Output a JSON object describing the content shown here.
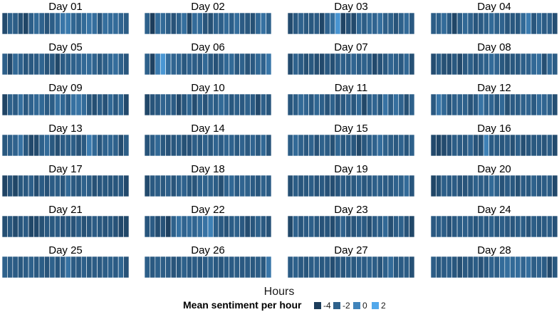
{
  "chart_data": {
    "type": "heatmap",
    "xlabel": "Hours",
    "legend": {
      "title": "Mean sentiment per hour",
      "placement": "bottom",
      "breaks": [
        -4,
        -2,
        0,
        2
      ],
      "labels": [
        "-4",
        "-2",
        "0",
        "2"
      ]
    },
    "color_scale": {
      "low": "#132B43",
      "high": "#56B1F7",
      "limits": [
        -5,
        2.5
      ]
    },
    "panels": [
      {
        "title": "Day 01",
        "values": [
          -3.2,
          -2.0,
          -2.2,
          -2.9,
          -3.5,
          -2.1,
          -1.5,
          -1.9,
          -2.7,
          -2.2,
          -1.6,
          -0.8,
          -0.6,
          -1.7,
          -2.0,
          -1.5,
          -0.9,
          -1.3,
          -2.6,
          -1.2,
          -1.4,
          -1.4,
          -1.8,
          -2.2
        ]
      },
      {
        "title": "Day 02",
        "values": [
          -2.0,
          -4.0,
          -1.5,
          -1.5,
          -2.2,
          -2.8,
          -2.0,
          -1.2,
          -3.5,
          -1.4,
          -1.5,
          -2.7,
          -2.9,
          -1.9,
          -2.1,
          -1.4,
          -2.1,
          -1.3,
          -2.3,
          -2.5,
          -2.9,
          -1.6,
          -1.1,
          -2.0
        ]
      },
      {
        "title": "Day 03",
        "values": [
          -3.2,
          -2.4,
          -1.9,
          -2.4,
          -2.5,
          -2.3,
          -3.5,
          -1.8,
          -1.2,
          0.9,
          -3.6,
          -2.8,
          -3.3,
          -1.6,
          -2.2,
          -1.5,
          -1.8,
          -1.2,
          -2.1,
          -2.0,
          -2.7,
          -2.0,
          -1.4,
          -2.4
        ]
      },
      {
        "title": "Day 04",
        "values": [
          -2.2,
          -2.0,
          -1.4,
          -2.3,
          -3.5,
          -2.2,
          -1.6,
          -1.9,
          -2.6,
          -2.3,
          -2.0,
          -1.5,
          -2.0,
          -1.9,
          -2.6,
          -2.5,
          -2.5,
          -1.5,
          -0.5,
          -2.6,
          -1.6,
          -2.3,
          -2.1,
          -3.0
        ]
      },
      {
        "title": "Day 05",
        "values": [
          -2.1,
          -3.3,
          -1.6,
          -1.9,
          -2.6,
          -2.4,
          -2.3,
          -1.8,
          -2.7,
          -2.4,
          -3.4,
          -2.3,
          -2.1,
          -2.0,
          -1.8,
          -1.6,
          -1.4,
          -1.9,
          -2.5,
          -2.1,
          -1.6,
          -1.3,
          -2.0,
          -2.6
        ]
      },
      {
        "title": "Day 06",
        "values": [
          -2.0,
          -3.7,
          -0.5,
          1.0,
          -1.3,
          -1.8,
          -1.8,
          -2.5,
          -1.9,
          -2.2,
          -2.4,
          -1.6,
          -2.4,
          -2.8,
          -2.2,
          -1.6,
          -1.5,
          -2.4,
          -2.0,
          -2.7,
          -2.4,
          -1.6,
          -1.9,
          -0.8
        ]
      },
      {
        "title": "Day 07",
        "values": [
          -3.2,
          -1.9,
          -2.3,
          -2.9,
          -2.5,
          -3.0,
          -3.3,
          -2.4,
          -3.0,
          -2.2,
          -2.1,
          -2.2,
          -1.8,
          -2.2,
          -2.0,
          -2.2,
          -3.3,
          -2.8,
          -2.4,
          -1.8,
          -2.1,
          -2.4,
          -1.6,
          -2.9
        ]
      },
      {
        "title": "Day 08",
        "values": [
          -3.1,
          -2.2,
          -2.9,
          -3.0,
          -2.5,
          -3.3,
          -2.4,
          -2.1,
          -2.7,
          -2.1,
          -2.0,
          -1.4,
          -1.8,
          -2.5,
          -2.9,
          -2.5,
          -2.4,
          -2.1,
          -1.9,
          -1.6,
          -1.2,
          -3.0,
          -1.6,
          -2.2
        ]
      },
      {
        "title": "Day 09",
        "values": [
          -3.6,
          -2.0,
          -2.3,
          -1.2,
          -2.4,
          -1.9,
          -1.6,
          -1.6,
          -2.3,
          -2.2,
          -1.2,
          -1.7,
          -2.3,
          -1.1,
          -0.9,
          -1.4,
          -2.5,
          -3.0,
          -2.2,
          -2.8,
          -1.6,
          -2.4,
          -1.7,
          -3.3
        ]
      },
      {
        "title": "Day 10",
        "values": [
          -3.4,
          -2.7,
          -2.4,
          -1.8,
          -2.1,
          -2.3,
          -3.3,
          -2.6,
          -1.7,
          -3.1,
          -2.0,
          -2.8,
          -1.9,
          -2.2,
          -1.5,
          -1.8,
          -2.5,
          -2.1,
          -2.4,
          -2.0,
          -2.3,
          -3.3,
          -2.1,
          -2.6
        ]
      },
      {
        "title": "Day 11",
        "values": [
          -2.6,
          -2.2,
          -1.5,
          -1.8,
          -2.4,
          -1.7,
          -2.1,
          -2.7,
          -2.0,
          -2.8,
          -2.4,
          -1.9,
          -2.6,
          -1.6,
          -3.4,
          -2.0,
          -1.8,
          -2.5,
          -1.0,
          -2.2,
          -1.2,
          -1.9,
          -2.9,
          -2.0
        ]
      },
      {
        "title": "Day 12",
        "values": [
          -2.4,
          -0.8,
          -1.6,
          -2.6,
          -2.1,
          -2.0,
          -2.0,
          -2.7,
          -2.3,
          -0.9,
          -1.9,
          -1.8,
          -2.5,
          -1.6,
          -2.9,
          -2.3,
          -2.2,
          -2.0,
          -1.8,
          -2.4,
          -1.4,
          -1.8,
          -2.0,
          -3.0
        ]
      },
      {
        "title": "Day 13",
        "values": [
          -2.5,
          -2.1,
          -1.9,
          -1.0,
          -2.5,
          -3.3,
          -3.2,
          -2.0,
          -1.4,
          -2.5,
          -3.0,
          -2.3,
          -2.2,
          -2.2,
          -2.8,
          -2.4,
          -0.5,
          -1.6,
          -2.6,
          -1.9,
          -1.7,
          -2.0,
          -3.1,
          -2.2
        ]
      },
      {
        "title": "Day 14",
        "values": [
          -2.7,
          -2.2,
          -1.6,
          -2.5,
          -2.8,
          -2.6,
          -2.2,
          -2.9,
          -2.8,
          -2.2,
          -2.5,
          -2.1,
          -2.5,
          -1.8,
          -2.3,
          -1.8,
          -1.9,
          -2.4,
          -1.9,
          -2.4,
          -1.8,
          -2.5,
          -1.6,
          -2.7
        ]
      },
      {
        "title": "Day 15",
        "values": [
          -2.2,
          -1.5,
          -2.0,
          -2.4,
          -1.9,
          -2.8,
          -2.0,
          -2.2,
          -2.9,
          -1.7,
          -2.5,
          -2.2,
          -2.6,
          -3.4,
          -2.6,
          -2.1,
          -1.9,
          -1.3,
          -2.0,
          -2.2,
          -2.4,
          -1.9,
          -2.6,
          -2.0
        ]
      },
      {
        "title": "Day 16",
        "values": [
          -3.3,
          -3.5,
          -3.2,
          -2.8,
          -2.2,
          -2.3,
          -2.5,
          -1.8,
          -2.7,
          -2.9,
          -0.2,
          -2.3,
          -2.3,
          -2.6,
          -2.3,
          -2.9,
          -2.1,
          -3.0,
          -2.6,
          -2.5,
          -2.3,
          -2.7,
          -2.2,
          -3.2
        ]
      },
      {
        "title": "Day 17",
        "values": [
          -3.6,
          -2.7,
          -3.5,
          -2.5,
          -2.4,
          -2.1,
          -3.1,
          -2.3,
          -2.8,
          -2.3,
          -2.2,
          -2.6,
          -1.6,
          -2.4,
          -2.6,
          -2.0,
          -2.2,
          -2.9,
          -2.6,
          -2.5,
          -2.6,
          -2.6,
          -2.4,
          -3.3
        ]
      },
      {
        "title": "Day 18",
        "values": [
          -3.2,
          -2.4,
          -2.2,
          -2.5,
          -2.1,
          -2.7,
          -2.0,
          -1.9,
          -2.5,
          -2.7,
          -2.0,
          -2.0,
          -2.0,
          -2.2,
          -3.0,
          -1.9,
          -1.6,
          -2.3,
          -1.8,
          -2.0,
          -2.3,
          -2.6,
          -2.0,
          -2.3
        ]
      },
      {
        "title": "Day 19",
        "values": [
          -3.0,
          -2.2,
          -2.6,
          -2.5,
          -2.2,
          -2.7,
          -2.4,
          -2.8,
          -3.1,
          -2.6,
          -2.3,
          -2.5,
          -2.5,
          -2.0,
          -2.6,
          -2.4,
          -2.1,
          -2.1,
          -2.3,
          -2.4,
          -1.9,
          -2.0,
          -1.4,
          -2.6
        ]
      },
      {
        "title": "Day 20",
        "values": [
          -3.5,
          -2.9,
          -2.1,
          -2.3,
          -2.3,
          -2.7,
          -2.7,
          -2.5,
          -2.0,
          -2.2,
          -2.3,
          -1.5,
          -2.0,
          -2.8,
          -2.3,
          -2.5,
          -2.9,
          -2.3,
          -2.5,
          -2.0,
          -2.4,
          -2.3,
          -2.2,
          -3.3
        ]
      },
      {
        "title": "Day 21",
        "values": [
          -3.0,
          -2.5,
          -3.2,
          -2.6,
          -2.3,
          -3.4,
          -3.3,
          -2.9,
          -2.4,
          -2.5,
          -2.3,
          -2.8,
          -2.5,
          -2.8,
          -2.2,
          -2.9,
          -2.6,
          -2.3,
          -2.5,
          -2.7,
          -2.4,
          -2.8,
          -3.3,
          -3.4
        ]
      },
      {
        "title": "Day 22",
        "values": [
          -2.6,
          -2.3,
          -3.1,
          -2.8,
          -3.8,
          -2.0,
          -1.1,
          -1.8,
          -1.4,
          -1.8,
          -1.3,
          -1.0,
          -0.2,
          -2.1,
          -2.4,
          -2.7,
          -2.2,
          -2.0,
          -2.4,
          -3.1,
          -2.6,
          -2.0,
          -2.4,
          -2.8
        ]
      },
      {
        "title": "Day 23",
        "values": [
          -3.4,
          -1.9,
          -2.6,
          -2.3,
          -2.1,
          -2.5,
          -2.8,
          -2.6,
          -3.2,
          -2.4,
          -1.9,
          -2.7,
          -2.7,
          -2.2,
          -2.4,
          -3.0,
          -2.3,
          -2.2,
          -1.6,
          -3.0,
          -2.2,
          -2.0,
          -2.7,
          -3.4
        ]
      },
      {
        "title": "Day 24",
        "values": [
          -2.4,
          -2.2,
          -2.2,
          -2.8,
          -2.4,
          -2.2,
          -2.1,
          -2.3,
          -2.6,
          -2.2,
          -2.4,
          -2.0,
          -2.5,
          -2.2,
          -2.4,
          -2.6,
          -2.2,
          -2.2,
          -2.7,
          -2.2,
          -2.5,
          -2.4,
          -2.2,
          -2.8
        ]
      },
      {
        "title": "Day 25",
        "values": [
          -2.0,
          -2.2,
          -2.3,
          -2.5,
          -2.2,
          -2.0,
          -2.4,
          -2.2,
          -2.7,
          -2.0,
          -2.6,
          -2.1,
          -1.0,
          -2.3,
          -2.4,
          -2.1,
          -2.5,
          -2.3,
          -2.4,
          -2.2,
          -2.0,
          -2.3,
          -1.7,
          -2.8
        ]
      },
      {
        "title": "Day 26",
        "values": [
          -2.1,
          -2.4,
          -2.1,
          -2.2,
          -2.3,
          -2.7,
          -2.5,
          -2.0,
          -2.4,
          -2.3,
          -2.6,
          -2.3,
          -2.0,
          -2.4,
          -2.6,
          -2.2,
          -2.3,
          -2.2,
          -2.4,
          -2.3,
          -2.5,
          -2.2,
          -2.5,
          -0.8
        ]
      },
      {
        "title": "Day 27",
        "values": [
          -2.3,
          -2.0,
          -2.4,
          -2.6,
          -2.2,
          -2.1,
          -2.5,
          -2.3,
          -3.1,
          -2.4,
          -2.6,
          -2.2,
          -2.5,
          -2.1,
          -2.3,
          -2.0,
          -2.2,
          -2.7,
          -2.0,
          -1.4,
          -2.4,
          -2.3,
          -2.2,
          -2.9
        ]
      },
      {
        "title": "Day 28",
        "values": [
          -2.2,
          -2.5,
          -2.3,
          -2.1,
          -2.6,
          -3.0,
          -2.4,
          -2.6,
          -2.2,
          -2.8,
          -2.4,
          -1.9,
          -2.2,
          -1.4,
          -1.2,
          -1.5,
          -1.3,
          -1.8,
          -1.3,
          -2.2,
          -1.9,
          -2.3,
          -3.3,
          -2.5
        ]
      }
    ]
  }
}
